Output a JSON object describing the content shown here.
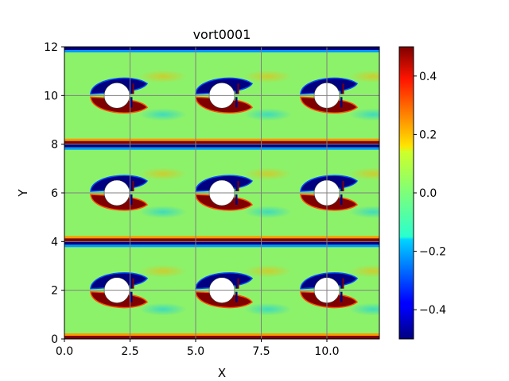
{
  "chart_data": {
    "type": "heatmap",
    "title": "vort0001",
    "xlabel": "X",
    "ylabel": "Y",
    "xlim": [
      0,
      12
    ],
    "ylim": [
      0,
      12
    ],
    "x_ticks": [
      0.0,
      2.5,
      5.0,
      7.5,
      10.0
    ],
    "x_tick_labels": [
      "0.0",
      "2.5",
      "5.0",
      "7.5",
      "10.0"
    ],
    "y_ticks": [
      0,
      2,
      4,
      6,
      8,
      10,
      12
    ],
    "y_tick_labels": [
      "0",
      "2",
      "4",
      "6",
      "8",
      "10",
      "12"
    ],
    "grid": true,
    "colormap": "jet",
    "background_color": "#8cf26a",
    "colorbar": {
      "range": [
        -0.5,
        0.5
      ],
      "ticks": [
        -0.4,
        -0.2,
        0.0,
        0.2,
        0.4
      ],
      "tick_labels": [
        "−0.4",
        "−0.2",
        "0.0",
        "0.2",
        "0.4"
      ]
    },
    "cylinders": [
      {
        "x": 2.0,
        "y": 2.0
      },
      {
        "x": 6.0,
        "y": 2.0
      },
      {
        "x": 10.0,
        "y": 2.0
      },
      {
        "x": 2.0,
        "y": 6.0
      },
      {
        "x": 6.0,
        "y": 6.0
      },
      {
        "x": 10.0,
        "y": 6.0
      },
      {
        "x": 2.0,
        "y": 10.0
      },
      {
        "x": 6.0,
        "y": 10.0
      },
      {
        "x": 10.0,
        "y": 10.0
      }
    ],
    "wall_bands": [
      {
        "y": 0.0,
        "value_below": -0.5,
        "value_above": 0.5
      },
      {
        "y": 4.0,
        "value_below": -0.5,
        "value_above": 0.5
      },
      {
        "y": 8.0,
        "value_below": -0.5,
        "value_above": 0.5
      },
      {
        "y": 12.0,
        "value_below": -0.5,
        "value_above": 0.5
      }
    ]
  }
}
